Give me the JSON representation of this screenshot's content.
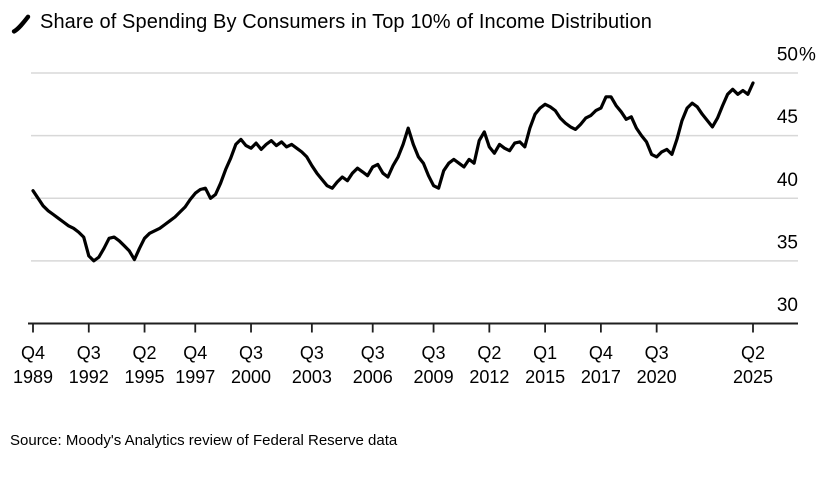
{
  "header": {
    "title": "Share of Spending By Consumers in Top 10% of Income Distribution"
  },
  "source_note": "Source: Moody's Analytics review of Federal Reserve data",
  "colors": {
    "line": "#000000",
    "grid": "#d8d8d8",
    "axis": "#1f1f1f",
    "text": "#000000",
    "background": "#ffffff"
  },
  "chart_data": {
    "type": "line",
    "title": "Share of Spending By Consumers in Top 10% of Income Distribution",
    "x_frequency": "quarterly",
    "x_start": "Q4 1989",
    "x_end": "Q2 2025",
    "ylim": [
      30,
      50
    ],
    "grid": "horizontal",
    "legend": "none",
    "y_ticks": [
      {
        "label": "50%",
        "value": 50
      },
      {
        "label": "45",
        "value": 45
      },
      {
        "label": "40",
        "value": 40
      },
      {
        "label": "35",
        "value": 35
      },
      {
        "label": "30",
        "value": 30
      }
    ],
    "x_ticks": [
      {
        "quarter": "Q4",
        "year": "1989",
        "index": 0
      },
      {
        "quarter": "Q3",
        "year": "1992",
        "index": 11
      },
      {
        "quarter": "Q2",
        "year": "1995",
        "index": 22
      },
      {
        "quarter": "Q4",
        "year": "1997",
        "index": 32
      },
      {
        "quarter": "Q3",
        "year": "2000",
        "index": 43
      },
      {
        "quarter": "Q3",
        "year": "2003",
        "index": 55
      },
      {
        "quarter": "Q3",
        "year": "2006",
        "index": 67
      },
      {
        "quarter": "Q3",
        "year": "2009",
        "index": 79
      },
      {
        "quarter": "Q2",
        "year": "2012",
        "index": 90
      },
      {
        "quarter": "Q1",
        "year": "2015",
        "index": 101
      },
      {
        "quarter": "Q4",
        "year": "2017",
        "index": 112
      },
      {
        "quarter": "Q3",
        "year": "2020",
        "index": 123
      },
      {
        "quarter": "Q2",
        "year": "2025",
        "index": 142
      }
    ],
    "values": [
      40.6,
      40.0,
      39.4,
      39.0,
      38.7,
      38.4,
      38.1,
      37.8,
      37.6,
      37.3,
      36.9,
      35.4,
      35.0,
      35.3,
      36.0,
      36.8,
      36.9,
      36.6,
      36.2,
      35.8,
      35.1,
      36.0,
      36.8,
      37.2,
      37.4,
      37.6,
      37.9,
      38.2,
      38.5,
      38.9,
      39.3,
      39.9,
      40.4,
      40.7,
      40.8,
      40.0,
      40.3,
      41.2,
      42.3,
      43.2,
      44.3,
      44.7,
      44.2,
      44.0,
      44.4,
      43.9,
      44.3,
      44.6,
      44.2,
      44.5,
      44.1,
      44.3,
      44.0,
      43.7,
      43.3,
      42.6,
      42.0,
      41.5,
      41.0,
      40.8,
      41.3,
      41.7,
      41.4,
      42.0,
      42.4,
      42.1,
      41.8,
      42.5,
      42.7,
      42.0,
      41.7,
      42.6,
      43.3,
      44.3,
      45.6,
      44.3,
      43.3,
      42.8,
      41.8,
      41.0,
      40.8,
      42.2,
      42.8,
      43.1,
      42.8,
      42.5,
      43.1,
      42.8,
      44.6,
      45.3,
      44.1,
      43.6,
      44.3,
      44.0,
      43.8,
      44.4,
      44.5,
      44.1,
      45.6,
      46.7,
      47.2,
      47.5,
      47.3,
      47.0,
      46.4,
      46.0,
      45.7,
      45.5,
      45.9,
      46.4,
      46.6,
      47.0,
      47.2,
      48.1,
      48.1,
      47.4,
      46.9,
      46.3,
      46.5,
      45.6,
      45.0,
      44.5,
      43.5,
      43.3,
      43.7,
      43.9,
      43.5,
      44.7,
      46.2,
      47.2,
      47.6,
      47.3,
      46.7,
      46.2,
      45.7,
      46.4,
      47.4,
      48.3,
      48.7,
      48.3,
      48.6,
      48.3,
      49.2
    ]
  }
}
